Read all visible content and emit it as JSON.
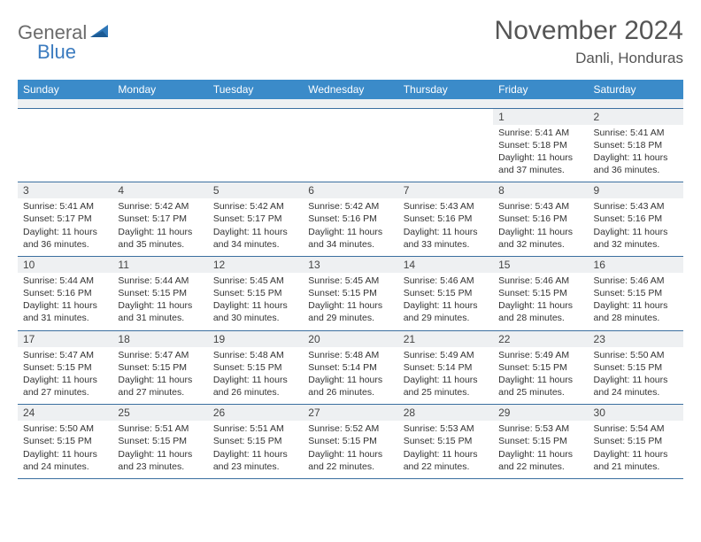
{
  "logo": {
    "part1": "General",
    "part2": "Blue"
  },
  "title": "November 2024",
  "location": "Danli, Honduras",
  "colors": {
    "header_bg": "#3b8bc9",
    "row_border": "#3b6fa0",
    "daynum_bg": "#eef0f2",
    "logo_gray": "#6b6b6b",
    "logo_blue": "#3b7bbf"
  },
  "day_headers": [
    "Sunday",
    "Monday",
    "Tuesday",
    "Wednesday",
    "Thursday",
    "Friday",
    "Saturday"
  ],
  "weeks": [
    [
      {
        "n": "",
        "lines": []
      },
      {
        "n": "",
        "lines": []
      },
      {
        "n": "",
        "lines": []
      },
      {
        "n": "",
        "lines": []
      },
      {
        "n": "",
        "lines": []
      },
      {
        "n": "1",
        "lines": [
          "Sunrise: 5:41 AM",
          "Sunset: 5:18 PM",
          "Daylight: 11 hours and 37 minutes."
        ]
      },
      {
        "n": "2",
        "lines": [
          "Sunrise: 5:41 AM",
          "Sunset: 5:18 PM",
          "Daylight: 11 hours and 36 minutes."
        ]
      }
    ],
    [
      {
        "n": "3",
        "lines": [
          "Sunrise: 5:41 AM",
          "Sunset: 5:17 PM",
          "Daylight: 11 hours and 36 minutes."
        ]
      },
      {
        "n": "4",
        "lines": [
          "Sunrise: 5:42 AM",
          "Sunset: 5:17 PM",
          "Daylight: 11 hours and 35 minutes."
        ]
      },
      {
        "n": "5",
        "lines": [
          "Sunrise: 5:42 AM",
          "Sunset: 5:17 PM",
          "Daylight: 11 hours and 34 minutes."
        ]
      },
      {
        "n": "6",
        "lines": [
          "Sunrise: 5:42 AM",
          "Sunset: 5:16 PM",
          "Daylight: 11 hours and 34 minutes."
        ]
      },
      {
        "n": "7",
        "lines": [
          "Sunrise: 5:43 AM",
          "Sunset: 5:16 PM",
          "Daylight: 11 hours and 33 minutes."
        ]
      },
      {
        "n": "8",
        "lines": [
          "Sunrise: 5:43 AM",
          "Sunset: 5:16 PM",
          "Daylight: 11 hours and 32 minutes."
        ]
      },
      {
        "n": "9",
        "lines": [
          "Sunrise: 5:43 AM",
          "Sunset: 5:16 PM",
          "Daylight: 11 hours and 32 minutes."
        ]
      }
    ],
    [
      {
        "n": "10",
        "lines": [
          "Sunrise: 5:44 AM",
          "Sunset: 5:16 PM",
          "Daylight: 11 hours and 31 minutes."
        ]
      },
      {
        "n": "11",
        "lines": [
          "Sunrise: 5:44 AM",
          "Sunset: 5:15 PM",
          "Daylight: 11 hours and 31 minutes."
        ]
      },
      {
        "n": "12",
        "lines": [
          "Sunrise: 5:45 AM",
          "Sunset: 5:15 PM",
          "Daylight: 11 hours and 30 minutes."
        ]
      },
      {
        "n": "13",
        "lines": [
          "Sunrise: 5:45 AM",
          "Sunset: 5:15 PM",
          "Daylight: 11 hours and 29 minutes."
        ]
      },
      {
        "n": "14",
        "lines": [
          "Sunrise: 5:46 AM",
          "Sunset: 5:15 PM",
          "Daylight: 11 hours and 29 minutes."
        ]
      },
      {
        "n": "15",
        "lines": [
          "Sunrise: 5:46 AM",
          "Sunset: 5:15 PM",
          "Daylight: 11 hours and 28 minutes."
        ]
      },
      {
        "n": "16",
        "lines": [
          "Sunrise: 5:46 AM",
          "Sunset: 5:15 PM",
          "Daylight: 11 hours and 28 minutes."
        ]
      }
    ],
    [
      {
        "n": "17",
        "lines": [
          "Sunrise: 5:47 AM",
          "Sunset: 5:15 PM",
          "Daylight: 11 hours and 27 minutes."
        ]
      },
      {
        "n": "18",
        "lines": [
          "Sunrise: 5:47 AM",
          "Sunset: 5:15 PM",
          "Daylight: 11 hours and 27 minutes."
        ]
      },
      {
        "n": "19",
        "lines": [
          "Sunrise: 5:48 AM",
          "Sunset: 5:15 PM",
          "Daylight: 11 hours and 26 minutes."
        ]
      },
      {
        "n": "20",
        "lines": [
          "Sunrise: 5:48 AM",
          "Sunset: 5:14 PM",
          "Daylight: 11 hours and 26 minutes."
        ]
      },
      {
        "n": "21",
        "lines": [
          "Sunrise: 5:49 AM",
          "Sunset: 5:14 PM",
          "Daylight: 11 hours and 25 minutes."
        ]
      },
      {
        "n": "22",
        "lines": [
          "Sunrise: 5:49 AM",
          "Sunset: 5:15 PM",
          "Daylight: 11 hours and 25 minutes."
        ]
      },
      {
        "n": "23",
        "lines": [
          "Sunrise: 5:50 AM",
          "Sunset: 5:15 PM",
          "Daylight: 11 hours and 24 minutes."
        ]
      }
    ],
    [
      {
        "n": "24",
        "lines": [
          "Sunrise: 5:50 AM",
          "Sunset: 5:15 PM",
          "Daylight: 11 hours and 24 minutes."
        ]
      },
      {
        "n": "25",
        "lines": [
          "Sunrise: 5:51 AM",
          "Sunset: 5:15 PM",
          "Daylight: 11 hours and 23 minutes."
        ]
      },
      {
        "n": "26",
        "lines": [
          "Sunrise: 5:51 AM",
          "Sunset: 5:15 PM",
          "Daylight: 11 hours and 23 minutes."
        ]
      },
      {
        "n": "27",
        "lines": [
          "Sunrise: 5:52 AM",
          "Sunset: 5:15 PM",
          "Daylight: 11 hours and 22 minutes."
        ]
      },
      {
        "n": "28",
        "lines": [
          "Sunrise: 5:53 AM",
          "Sunset: 5:15 PM",
          "Daylight: 11 hours and 22 minutes."
        ]
      },
      {
        "n": "29",
        "lines": [
          "Sunrise: 5:53 AM",
          "Sunset: 5:15 PM",
          "Daylight: 11 hours and 22 minutes."
        ]
      },
      {
        "n": "30",
        "lines": [
          "Sunrise: 5:54 AM",
          "Sunset: 5:15 PM",
          "Daylight: 11 hours and 21 minutes."
        ]
      }
    ]
  ]
}
